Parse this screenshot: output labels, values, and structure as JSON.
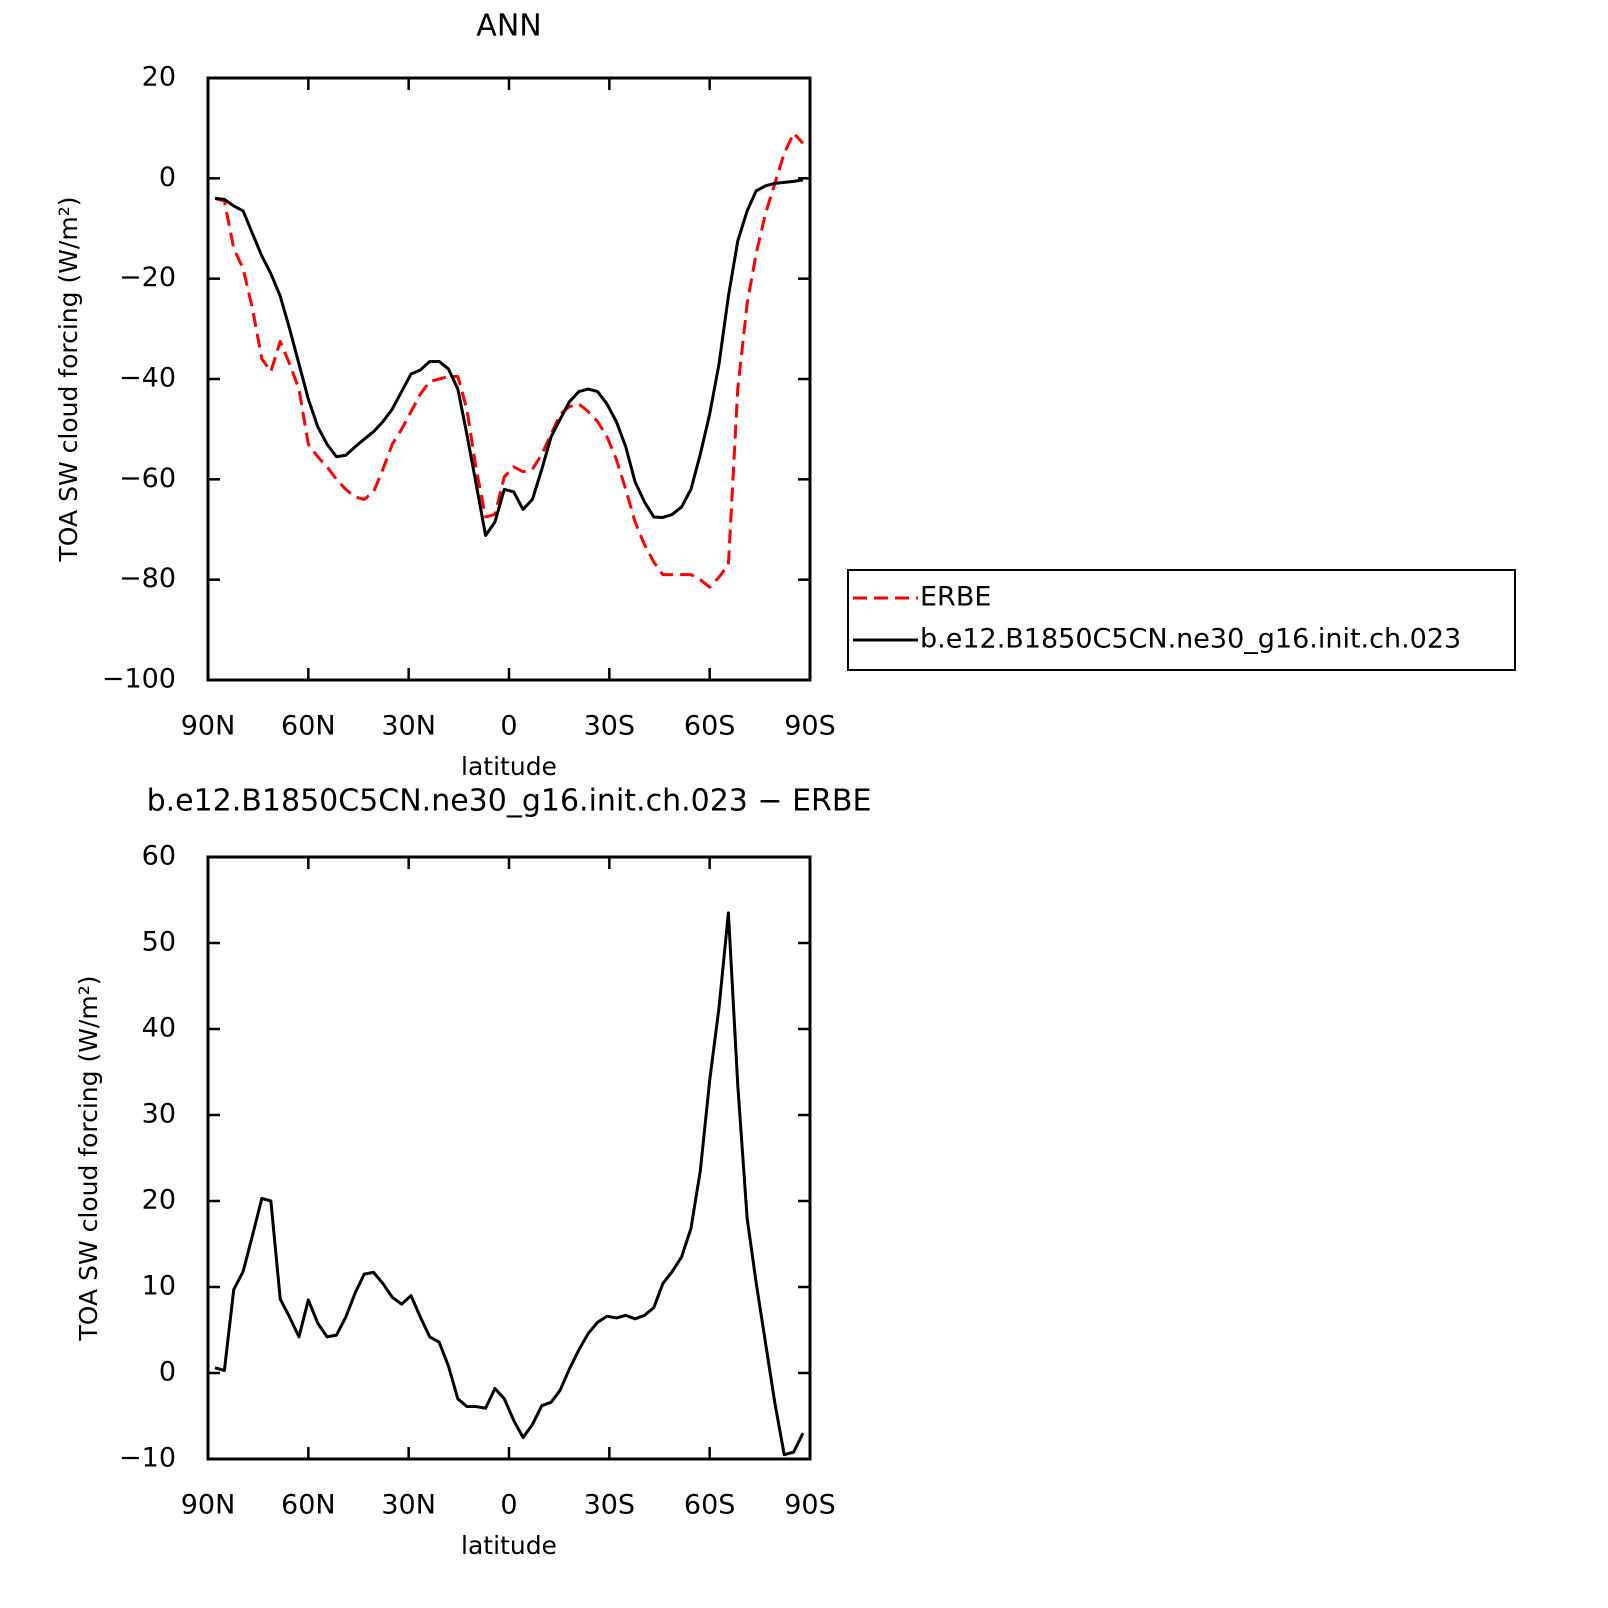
{
  "chart_data": [
    {
      "type": "line",
      "title": "ANN",
      "xlabel": "latitude",
      "ylabel": "TOA SW cloud forcing (W/m²)",
      "x": [
        87.9,
        85.1,
        82.3,
        79.5,
        76.7,
        73.9,
        71.2,
        68.4,
        65.6,
        62.8,
        60.0,
        57.2,
        54.4,
        51.6,
        48.8,
        46.0,
        43.3,
        40.5,
        37.7,
        34.9,
        32.1,
        29.3,
        26.5,
        23.7,
        20.9,
        18.1,
        15.3,
        12.6,
        9.8,
        7.0,
        4.2,
        1.4,
        -1.4,
        -4.2,
        -7.0,
        -9.8,
        -12.6,
        -15.3,
        -18.1,
        -20.9,
        -23.7,
        -26.5,
        -29.3,
        -32.1,
        -34.9,
        -37.7,
        -40.5,
        -43.3,
        -46.0,
        -48.8,
        -51.6,
        -54.4,
        -57.2,
        -60.0,
        -62.8,
        -65.6,
        -68.4,
        -71.2,
        -73.9,
        -76.7,
        -79.5,
        -82.3,
        -85.1,
        -87.9
      ],
      "xlim": [
        90,
        -90
      ],
      "xticks": [
        {
          "value": 90,
          "label": "90N"
        },
        {
          "value": 60,
          "label": "60N"
        },
        {
          "value": 30,
          "label": "30N"
        },
        0,
        {
          "value": -30,
          "label": "30S"
        },
        {
          "value": -60,
          "label": "60S"
        },
        {
          "value": -90,
          "label": "90S"
        }
      ],
      "ylim": [
        -100,
        20
      ],
      "yticks": [
        20,
        0,
        {
          "value": -20,
          "label": "−20"
        },
        {
          "value": -40,
          "label": "−40"
        },
        {
          "value": -60,
          "label": "−60"
        },
        {
          "value": -80,
          "label": "−80"
        },
        {
          "value": -100,
          "label": "−100"
        }
      ],
      "legend": "outside-right",
      "series": [
        {
          "name": "ERBE",
          "color": "#ff0000",
          "dashed": true,
          "values": [
            -4,
            -4.5,
            -14,
            -18,
            -26,
            -36,
            -38.5,
            -32.5,
            -37,
            -42,
            -53,
            -55.5,
            -57.5,
            -60,
            -62,
            -63.5,
            -64,
            -62.5,
            -58,
            -53,
            -50,
            -46.5,
            -43,
            -40.5,
            -40,
            -39.5,
            -39.5,
            -46,
            -58,
            -67.5,
            -67,
            -59.5,
            -57.5,
            -58.5,
            -58,
            -55,
            -51,
            -47,
            -45.5,
            -45,
            -46.5,
            -48.5,
            -51.5,
            -56,
            -62,
            -68.5,
            -73,
            -76.5,
            -79,
            -79,
            -79,
            -79,
            -80,
            -81.5,
            -79.5,
            -77,
            -42,
            -25,
            -15,
            -7,
            -1,
            5,
            9,
            7
          ]
        },
        {
          "name": "b.e12.B1850C5CN.ne30_g16.init.ch.023",
          "color": "#000000",
          "dashed": false,
          "values": [
            -4,
            -4.2,
            -5.5,
            -6.5,
            -11,
            -15.5,
            -19,
            -23.5,
            -30,
            -37,
            -44,
            -49.5,
            -53,
            -55.5,
            -55.2,
            -53.5,
            -52,
            -50.5,
            -48.5,
            -46,
            -42.5,
            -39,
            -38.2,
            -36.5,
            -36.5,
            -38,
            -42,
            -51,
            -61,
            -71.2,
            -68.5,
            -62,
            -62.5,
            -66,
            -64,
            -58,
            -51.5,
            -48,
            -44.5,
            -42.5,
            -42,
            -42.5,
            -45,
            -48.5,
            -53.5,
            -60.5,
            -64.5,
            -67.5,
            -67.6,
            -67,
            -65.5,
            -62,
            -55,
            -47,
            -37,
            -23.5,
            -12.5,
            -6.5,
            -2.5,
            -1.5,
            -1.0,
            -0.8,
            -0.6,
            -0.3
          ]
        }
      ]
    },
    {
      "type": "line",
      "title": "b.e12.B1850C5CN.ne30_g16.init.ch.023 − ERBE",
      "xlabel": "latitude",
      "ylabel": "TOA SW cloud forcing (W/m²)",
      "x": [
        87.9,
        85.1,
        82.3,
        79.5,
        76.7,
        73.9,
        71.2,
        68.4,
        65.6,
        62.8,
        60.0,
        57.2,
        54.4,
        51.6,
        48.8,
        46.0,
        43.3,
        40.5,
        37.7,
        34.9,
        32.1,
        29.3,
        26.5,
        23.7,
        20.9,
        18.1,
        15.3,
        12.6,
        9.8,
        7.0,
        4.2,
        1.4,
        -1.4,
        -4.2,
        -7.0,
        -9.8,
        -12.6,
        -15.3,
        -18.1,
        -20.9,
        -23.7,
        -26.5,
        -29.3,
        -32.1,
        -34.9,
        -37.7,
        -40.5,
        -43.3,
        -46.0,
        -48.8,
        -51.6,
        -54.4,
        -57.2,
        -60.0,
        -62.8,
        -65.6,
        -68.4,
        -71.2,
        -73.9,
        -76.7,
        -79.5,
        -82.3,
        -85.1,
        -87.9
      ],
      "xlim": [
        90,
        -90
      ],
      "xticks": [
        {
          "value": 90,
          "label": "90N"
        },
        {
          "value": 60,
          "label": "60N"
        },
        {
          "value": 30,
          "label": "30N"
        },
        0,
        {
          "value": -30,
          "label": "30S"
        },
        {
          "value": -60,
          "label": "60S"
        },
        {
          "value": -90,
          "label": "90S"
        }
      ],
      "ylim": [
        -10,
        60
      ],
      "yticks": [
        60,
        50,
        40,
        30,
        20,
        10,
        0,
        {
          "value": -10,
          "label": "−10"
        }
      ],
      "series": [
        {
          "color": "#000000",
          "dashed": false,
          "values": [
            0.6,
            0.3,
            9.7,
            11.8,
            16,
            20.3,
            20,
            8.6,
            6.5,
            4.2,
            8.5,
            5.8,
            4.2,
            4.4,
            6.5,
            9.3,
            11.5,
            11.7,
            10.4,
            8.8,
            8,
            9,
            6.5,
            4.2,
            3.6,
            0.8,
            -3,
            -3.9,
            -3.9,
            -4.1,
            -1.8,
            -3,
            -5.5,
            -7.5,
            -6,
            -3.8,
            -3.4,
            -2,
            0.5,
            2.7,
            4.6,
            5.9,
            6.6,
            6.4,
            6.7,
            6.3,
            6.7,
            7.6,
            10.4,
            11.8,
            13.5,
            16.8,
            23.5,
            34,
            42.5,
            53.5,
            33.5,
            18,
            10.5,
            3.5,
            -3.5,
            -9.5,
            -9.2,
            -7
          ]
        }
      ]
    }
  ]
}
